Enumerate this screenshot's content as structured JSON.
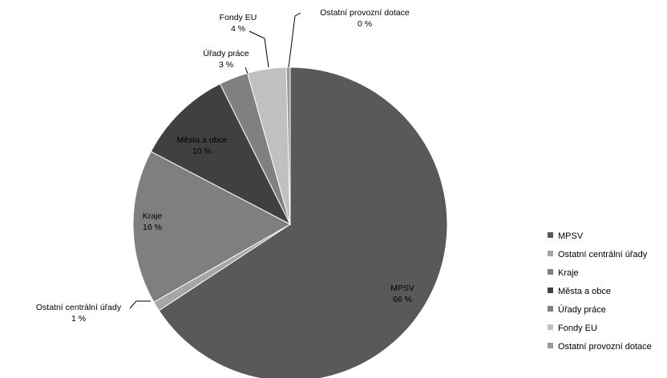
{
  "chart_data": {
    "type": "pie",
    "slices": [
      {
        "name": "MPSV",
        "value": 66,
        "label": "MPSV",
        "pct": "66 %",
        "color": "#595959"
      },
      {
        "name": "Ostatní centrální úřady",
        "value": 1,
        "label": "Ostatní centrální úřady",
        "pct": "1 %",
        "color": "#a6a6a6"
      },
      {
        "name": "Kraje",
        "value": 16,
        "label": "Kraje",
        "pct": "16 %",
        "color": "#7f7f7f"
      },
      {
        "name": "Města a obce",
        "value": 10,
        "label": "Města a obce",
        "pct": "10 %",
        "color": "#404040"
      },
      {
        "name": "Úřady práce",
        "value": 3,
        "label": "Úřady práce",
        "pct": "3 %",
        "color": "#808080"
      },
      {
        "name": "Fondy EU",
        "value": 4,
        "label": "Fondy EU",
        "pct": "4 %",
        "color": "#c0c0c0"
      },
      {
        "name": "Ostatní provozní dotace",
        "value": 0.4,
        "label": "Ostatní provozní dotace",
        "pct": "0 %",
        "color": "#999999"
      }
    ],
    "legend_position": "right"
  }
}
